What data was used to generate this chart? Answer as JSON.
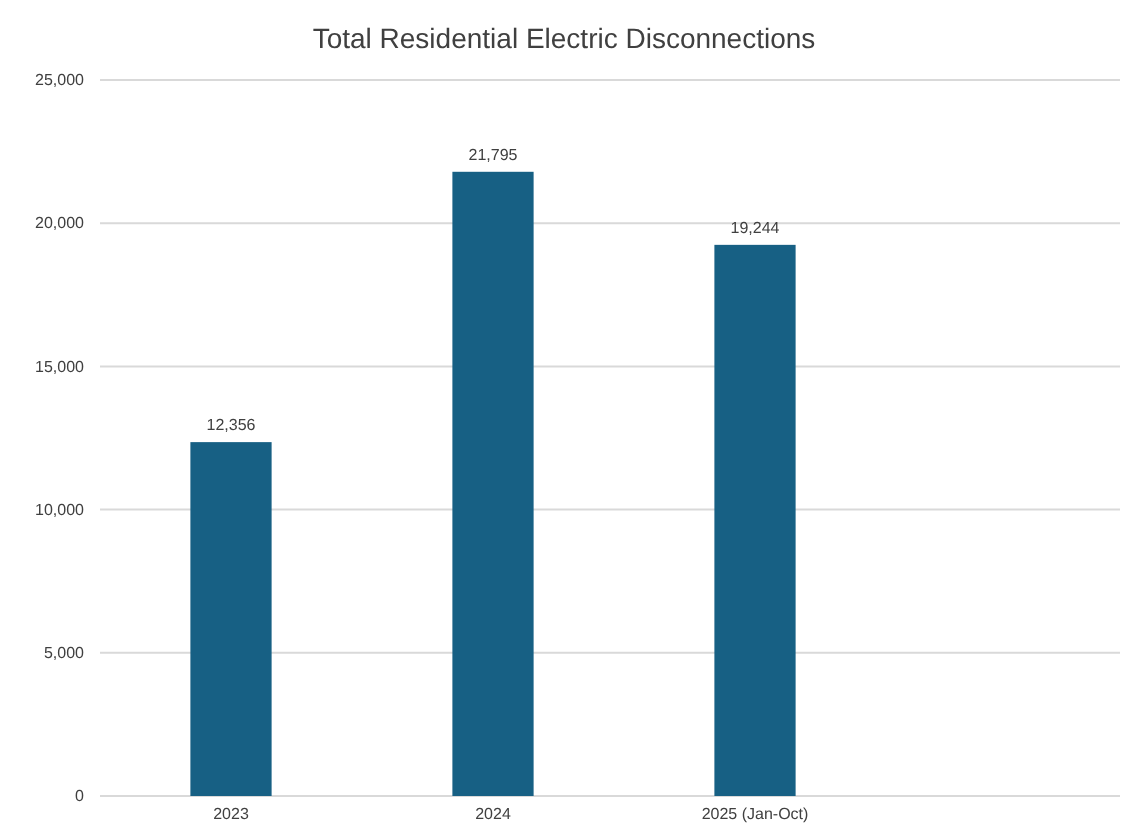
{
  "chart_data": {
    "type": "bar",
    "title": "Total Residential Electric Disconnections",
    "categories": [
      "2023",
      "2024",
      "2025 (Jan-Oct)"
    ],
    "values": [
      12356,
      21795,
      19244
    ],
    "color": "#176084",
    "ylim": [
      0,
      25000
    ],
    "yticks": [
      {
        "value": 0,
        "label": "0"
      },
      {
        "value": 5000,
        "label": "5,000"
      },
      {
        "value": 10000,
        "label": "10,000"
      },
      {
        "value": 15000,
        "label": "15,000"
      },
      {
        "value": 20000,
        "label": "20,000"
      },
      {
        "value": 25000,
        "label": "25,000"
      }
    ],
    "grid": "y",
    "value_labels": [
      "12,356",
      "21,795",
      "19,244"
    ]
  }
}
